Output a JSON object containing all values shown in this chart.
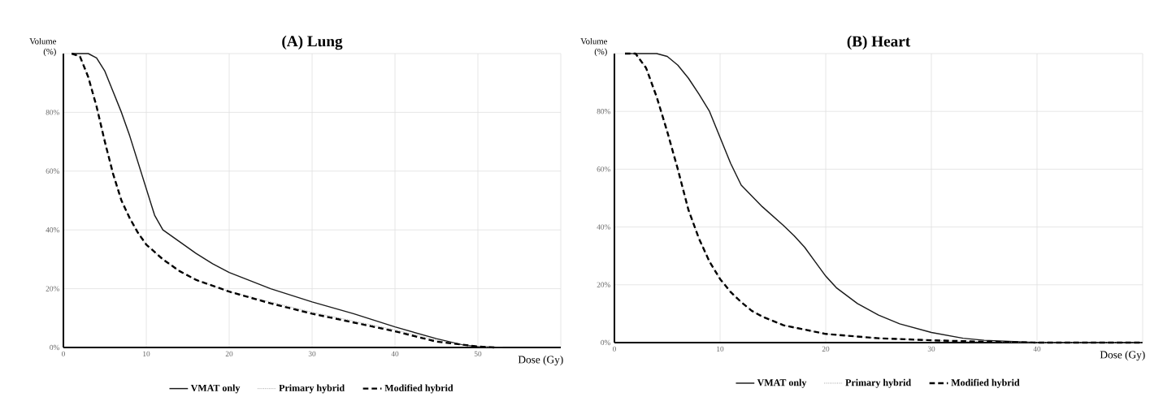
{
  "chart_data": [
    {
      "type": "line",
      "title": "(A) Lung",
      "xlabel": "Dose (Gy)",
      "ylabel": "Volume (%)",
      "xlim": [
        0,
        60
      ],
      "ylim": [
        0,
        100
      ],
      "xticks": [
        0,
        10,
        20,
        30,
        40,
        50,
        {
          "value": 60,
          "label": null
        }
      ],
      "yticks": [
        {
          "value": 0,
          "label": "0%"
        },
        {
          "value": 20,
          "label": "20%"
        },
        {
          "value": 40,
          "label": "40%"
        },
        {
          "value": 60,
          "label": "60%"
        },
        {
          "value": 80,
          "label": "80%"
        },
        {
          "value": 100,
          "label": null
        }
      ],
      "grid": true,
      "legend": "bottom",
      "series": [
        {
          "name": "VMAT only",
          "color": "#1a1a1a",
          "line_style": "solid",
          "x": [
            1,
            3,
            4,
            5,
            6,
            7,
            8,
            9,
            10,
            11,
            12,
            14,
            16,
            18,
            20,
            25,
            30,
            35,
            40,
            45,
            48,
            50,
            53
          ],
          "values": [
            100,
            100,
            98.5,
            94,
            87,
            80,
            72,
            63,
            54,
            45,
            40,
            36,
            32,
            28.5,
            25.5,
            20,
            15.5,
            11.5,
            7,
            3,
            1,
            0.3,
            0
          ]
        },
        {
          "name": "Primary hybrid",
          "color": "#999999",
          "line_style": "dotted",
          "x": [
            1,
            2,
            3,
            4,
            5,
            6,
            7,
            8,
            9,
            10,
            12,
            14,
            16,
            18,
            20,
            25,
            30,
            35,
            40,
            45,
            48,
            50,
            52
          ],
          "values": [
            100,
            99,
            92,
            82,
            70,
            59,
            50,
            44,
            39,
            35,
            30,
            26,
            23,
            21,
            19,
            15.5,
            12,
            9,
            6,
            2.5,
            1,
            0.3,
            0
          ]
        },
        {
          "name": "Modified hybrid",
          "color": "#000000",
          "line_style": "dashed",
          "x": [
            1,
            2,
            3,
            4,
            5,
            6,
            7,
            8,
            9,
            10,
            12,
            14,
            16,
            18,
            20,
            25,
            30,
            35,
            40,
            45,
            48,
            50,
            52
          ],
          "values": [
            100,
            99,
            92,
            82,
            70,
            59,
            50,
            44,
            39,
            35,
            30,
            26,
            23,
            21,
            19,
            15,
            11.5,
            8.5,
            5.5,
            2,
            1,
            0.3,
            0
          ]
        }
      ]
    },
    {
      "type": "line",
      "title": "(B) Heart",
      "xlabel": "Dose (Gy)",
      "ylabel": "Volume (%)",
      "xlim": [
        0,
        50
      ],
      "ylim": [
        0,
        100
      ],
      "xticks": [
        0,
        10,
        20,
        30,
        40,
        {
          "value": 50,
          "label": null
        }
      ],
      "yticks": [
        {
          "value": 0,
          "label": "0%"
        },
        {
          "value": 20,
          "label": "20%"
        },
        {
          "value": 40,
          "label": "40%"
        },
        {
          "value": 60,
          "label": "60%"
        },
        {
          "value": 80,
          "label": "80%"
        },
        {
          "value": 100,
          "label": null
        }
      ],
      "grid": true,
      "legend": "bottom",
      "series": [
        {
          "name": "VMAT only",
          "color": "#1a1a1a",
          "line_style": "solid",
          "x": [
            1,
            4,
            5,
            6,
            7,
            8,
            9,
            10,
            11,
            12,
            14,
            16,
            17,
            18,
            19,
            20,
            21,
            23,
            25,
            27,
            30,
            33,
            35,
            40,
            50
          ],
          "values": [
            100,
            100,
            99,
            96,
            91.5,
            86,
            80,
            71,
            62,
            54.5,
            47,
            40.5,
            37,
            33,
            28,
            23,
            19,
            13.5,
            9.5,
            6.5,
            3.5,
            1.5,
            0.8,
            0,
            0
          ]
        },
        {
          "name": "Primary hybrid",
          "color": "#999999",
          "line_style": "dotted",
          "x": [
            1,
            2,
            3,
            4,
            5,
            6,
            7,
            8,
            9,
            10,
            11,
            12,
            13,
            14,
            16,
            18,
            20,
            25,
            30,
            35,
            40,
            50
          ],
          "values": [
            100,
            100,
            95,
            85,
            73,
            60,
            46,
            36,
            28,
            22,
            17.5,
            14,
            11,
            9,
            6,
            4.5,
            3,
            1.5,
            0.8,
            0.3,
            0,
            0
          ]
        },
        {
          "name": "Modified hybrid",
          "color": "#000000",
          "line_style": "dashed",
          "x": [
            1,
            2,
            3,
            4,
            5,
            6,
            7,
            8,
            9,
            10,
            11,
            12,
            13,
            14,
            16,
            18,
            20,
            25,
            30,
            35,
            40,
            50
          ],
          "values": [
            100,
            100,
            95,
            85,
            73,
            60,
            46,
            36,
            28,
            22,
            17.5,
            14,
            11,
            9,
            6,
            4.5,
            3,
            1.5,
            0.8,
            0.3,
            0,
            0
          ]
        }
      ]
    }
  ]
}
